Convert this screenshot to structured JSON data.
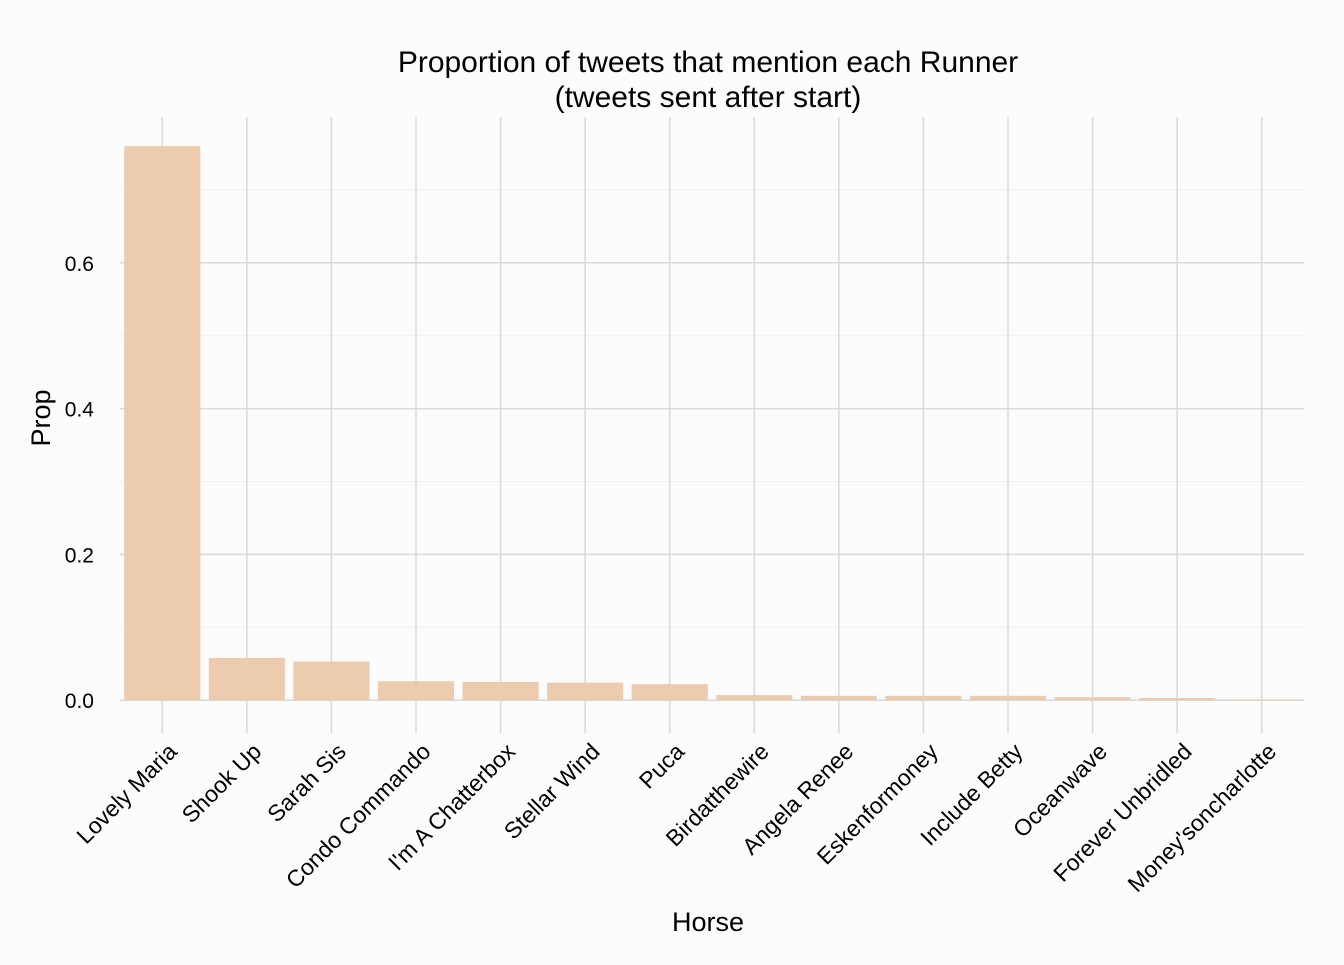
{
  "chart_data": {
    "type": "bar",
    "title": "Proportion of tweets that mention each Runner",
    "subtitle": "(tweets sent after start)",
    "xlabel": "Horse",
    "ylabel": "Prop",
    "categories": [
      "Lovely Maria",
      "Shook Up",
      "Sarah Sis",
      "Condo Commando",
      "I'm A Chatterbox",
      "Stellar Wind",
      "Puca",
      "Birdatthewire",
      "Angela Renee",
      "Eskenformoney",
      "Include Betty",
      "Oceanwave",
      "Forever Unbridled",
      "Money'soncharlotte"
    ],
    "values": [
      0.76,
      0.058,
      0.053,
      0.026,
      0.025,
      0.024,
      0.022,
      0.007,
      0.006,
      0.006,
      0.006,
      0.004,
      0.003,
      0.001
    ],
    "y_ticks": [
      0.0,
      0.2,
      0.4,
      0.6
    ],
    "y_tick_labels": [
      "0.0",
      "0.2",
      "0.4",
      "0.6"
    ],
    "ylim": [
      -0.045,
      0.8
    ],
    "grid": true,
    "legend": "none",
    "colors": {
      "bar": "#edcbae",
      "background": "#fcfcfc",
      "grid_major": "#d9d9d9",
      "grid_minor": "#f0f0f0"
    }
  }
}
